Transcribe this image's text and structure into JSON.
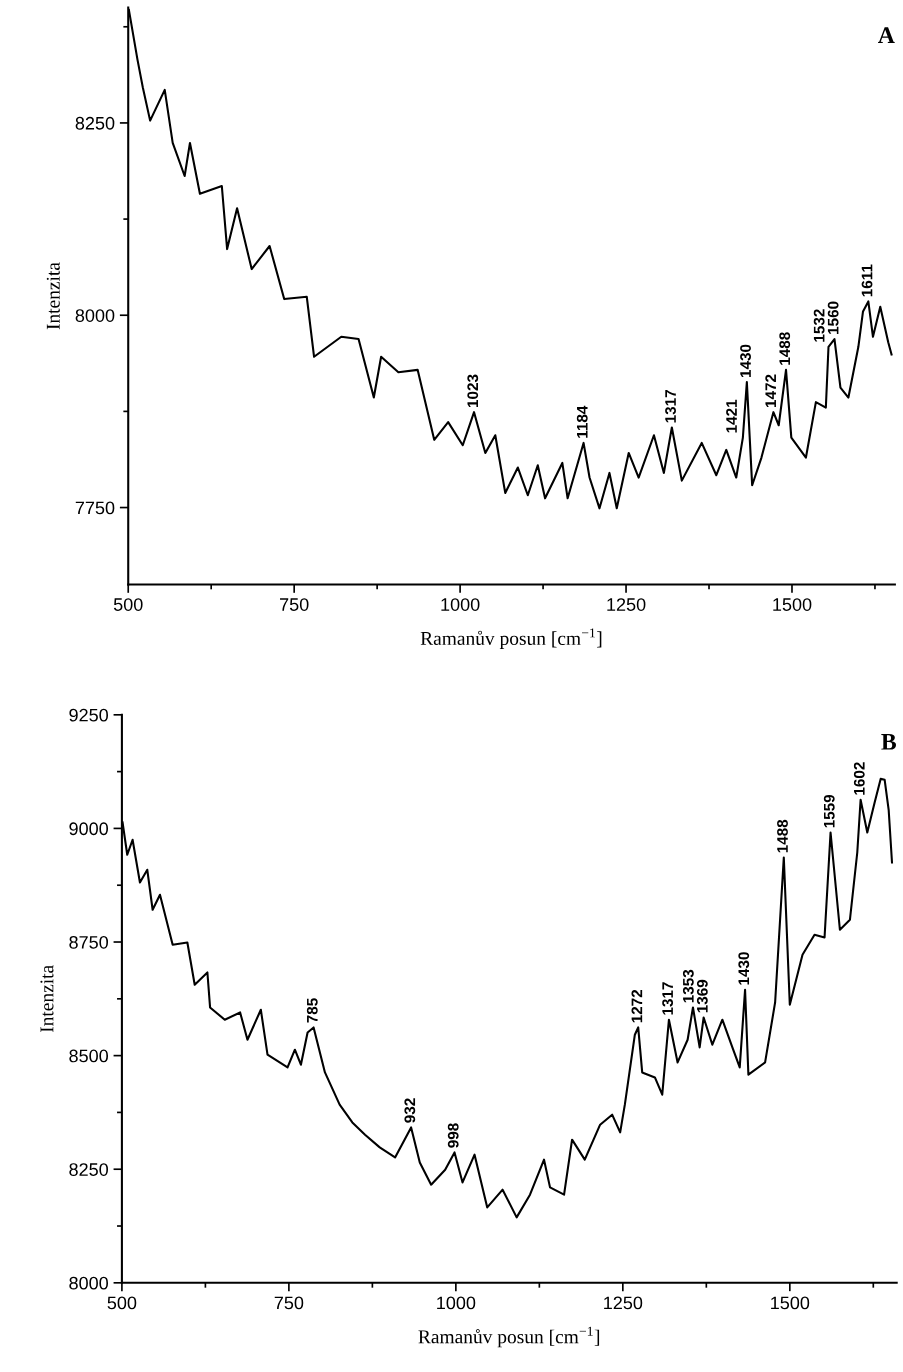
{
  "chart_data": [
    {
      "type": "line",
      "title": "A",
      "xlabel": "Ramanův posun [cm$^{−1}$]",
      "ylabel": "Intenzita",
      "xlim": [
        500,
        1655
      ],
      "xticks": [
        500,
        750,
        1000,
        1250,
        1500
      ],
      "ylim": [
        7650,
        8400
      ],
      "yticks": [
        7750,
        8000,
        8250
      ],
      "grid": false,
      "marker": "none",
      "line_style": "solid",
      "series": [
        {
          "color": "#000000",
          "x": [
            501,
            514,
            522,
            533,
            555,
            567,
            585,
            593,
            608,
            641,
            649,
            664,
            686,
            713,
            735,
            769,
            780,
            821,
            847,
            870,
            881,
            907,
            936,
            961,
            982,
            1004,
            1021,
            1038,
            1053,
            1068,
            1087,
            1102,
            1117,
            1128,
            1154,
            1162,
            1186,
            1195,
            1210,
            1225,
            1236,
            1254,
            1269,
            1292,
            1307,
            1319,
            1334,
            1364,
            1386,
            1401,
            1416,
            1426,
            1432,
            1440,
            1454,
            1472,
            1480,
            1491,
            1499,
            1521,
            1536,
            1551,
            1555,
            1564,
            1573,
            1585,
            1600,
            1607,
            1615,
            1622,
            1633,
            1645,
            1650
          ],
          "values": [
            8397,
            8332,
            8296,
            8253,
            8293,
            8224,
            8181,
            8224,
            8158,
            8168,
            8086,
            8139,
            8060,
            8090,
            8021,
            8024,
            7946,
            7972,
            7969,
            7893,
            7946,
            7926,
            7929,
            7838,
            7861,
            7831,
            7874,
            7821,
            7844,
            7769,
            7802,
            7766,
            7805,
            7762,
            7808,
            7762,
            7834,
            7789,
            7749,
            7795,
            7749,
            7821,
            7789,
            7844,
            7795,
            7854,
            7785,
            7834,
            7792,
            7825,
            7789,
            7841,
            7913,
            7779,
            7815,
            7874,
            7857,
            7929,
            7841,
            7815,
            7887,
            7880,
            7959,
            7969,
            7906,
            7893,
            7959,
            8005,
            8018,
            7972,
            8011,
            7965,
            7949
          ]
        }
      ],
      "annotations": [
        {
          "text": "1023",
          "x": 1021,
          "y": 7874
        },
        {
          "text": "1184",
          "x": 1186,
          "y": 7834
        },
        {
          "text": "1317",
          "x": 1319,
          "y": 7854
        },
        {
          "text": "1421",
          "x": 1426,
          "y": 7841
        },
        {
          "text": "1430",
          "x": 1432,
          "y": 7913
        },
        {
          "text": "1472",
          "x": 1472,
          "y": 7874
        },
        {
          "text": "1488",
          "x": 1491,
          "y": 7929
        },
        {
          "text": "1532",
          "x": 1555,
          "y": 7959
        },
        {
          "text": "1560",
          "x": 1564,
          "y": 7969
        },
        {
          "text": "1611",
          "x": 1615,
          "y": 8018
        }
      ]
    },
    {
      "type": "line",
      "title": "B",
      "xlabel": "Ramanův posun [cm$^{−1}$]",
      "ylabel": "Intenzita",
      "xlim": [
        500,
        1660
      ],
      "xticks": [
        500,
        750,
        1000,
        1250,
        1500
      ],
      "ylim": [
        8000,
        9250
      ],
      "yticks": [
        8000,
        8250,
        8500,
        8750,
        9000,
        9250
      ],
      "grid": false,
      "marker": "none",
      "line_style": "solid",
      "series": [
        {
          "color": "#000000",
          "x": [
            501,
            508,
            516,
            527,
            538,
            546,
            557,
            576,
            598,
            609,
            628,
            632,
            654,
            677,
            688,
            708,
            718,
            748,
            759,
            768,
            778,
            787,
            804,
            826,
            845,
            864,
            886,
            909,
            933,
            946,
            963,
            984,
            998,
            1010,
            1028,
            1047,
            1070,
            1091,
            1111,
            1132,
            1141,
            1162,
            1174,
            1193,
            1216,
            1234,
            1246,
            1253,
            1268,
            1273,
            1279,
            1298,
            1309,
            1319,
            1332,
            1347,
            1355,
            1365,
            1371,
            1384,
            1399,
            1414,
            1425,
            1433,
            1438,
            1463,
            1478,
            1491,
            1500,
            1519,
            1537,
            1552,
            1561,
            1575,
            1590,
            1601,
            1606,
            1616,
            1627,
            1636,
            1642,
            1648,
            1653
          ],
          "values": [
            9013,
            8942,
            8975,
            8881,
            8909,
            8821,
            8854,
            8744,
            8749,
            8656,
            8683,
            8606,
            8579,
            8595,
            8535,
            8601,
            8502,
            8474,
            8513,
            8480,
            8551,
            8562,
            8463,
            8392,
            8353,
            8326,
            8298,
            8276,
            8342,
            8265,
            8216,
            8249,
            8287,
            8221,
            8282,
            8166,
            8205,
            8144,
            8194,
            8271,
            8210,
            8194,
            8315,
            8271,
            8348,
            8370,
            8331,
            8392,
            8546,
            8562,
            8463,
            8452,
            8414,
            8579,
            8485,
            8535,
            8606,
            8518,
            8584,
            8524,
            8579,
            8518,
            8474,
            8645,
            8458,
            8485,
            8617,
            8936,
            8612,
            8722,
            8766,
            8760,
            8991,
            8777,
            8799,
            8947,
            9063,
            8991,
            9057,
            9109,
            9107,
            9041,
            8925
          ]
        }
      ],
      "annotations": [
        {
          "text": "785",
          "x": 787,
          "y": 8562
        },
        {
          "text": "932",
          "x": 933,
          "y": 8342
        },
        {
          "text": "998",
          "x": 998,
          "y": 8287
        },
        {
          "text": "1272",
          "x": 1273,
          "y": 8562
        },
        {
          "text": "1317",
          "x": 1319,
          "y": 8579
        },
        {
          "text": "1353",
          "x": 1355,
          "y": 8606
        },
        {
          "text": "1369",
          "x": 1371,
          "y": 8584
        },
        {
          "text": "1430",
          "x": 1433,
          "y": 8645
        },
        {
          "text": "1488",
          "x": 1491,
          "y": 8936
        },
        {
          "text": "1559",
          "x": 1561,
          "y": 8991
        },
        {
          "text": "1602",
          "x": 1606,
          "y": 9063
        }
      ]
    }
  ]
}
